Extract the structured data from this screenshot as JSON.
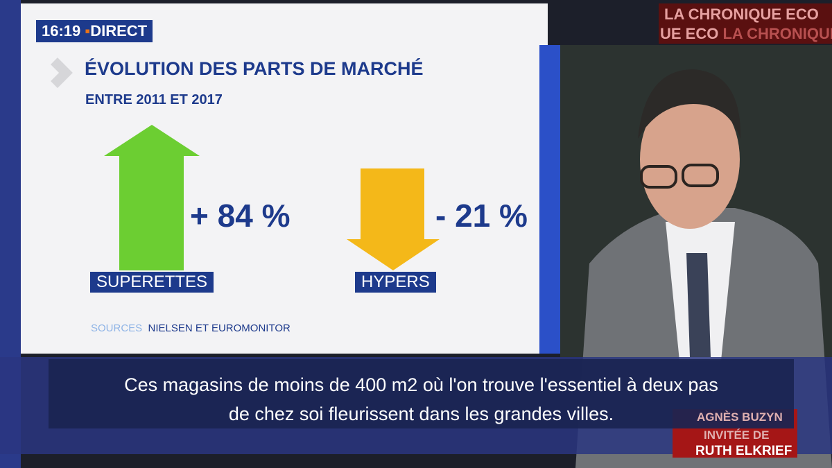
{
  "broadcast": {
    "time": "16:19",
    "live": "DIRECT",
    "segment": [
      "LA CHRONIQUE ECO",
      "UE ECO",
      "LA CHRONIQUE"
    ]
  },
  "infographic": {
    "title": "ÉVOLUTION DES PARTS DE MARCHÉ",
    "subtitle": "ENTRE 2011 ET 2017",
    "items": [
      {
        "change": "+ 84 %",
        "label": "SUPERETTES"
      },
      {
        "change": "- 21 %",
        "label": "HYPERS"
      }
    ],
    "source_label": "SOURCES",
    "source": "NIELSEN ET EUROMONITOR"
  },
  "caption": {
    "lines": [
      "Ces magasins de moins de 400 m2 où l'on trouve l'essentiel à deux pas",
      "de chez soi fleurissent dans les grandes villes."
    ]
  },
  "lower_third": {
    "guest": "AGNÈS BUZYN",
    "role": "INVITÉE DE",
    "host": "RUTH ELKRIEF"
  }
}
